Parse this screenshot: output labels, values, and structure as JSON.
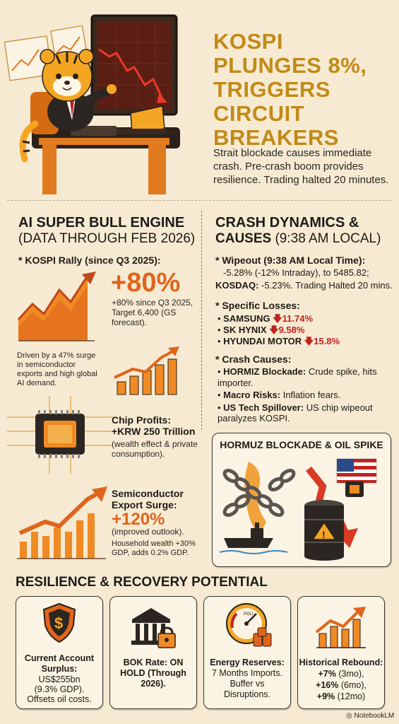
{
  "header": {
    "title_lines": [
      "KOSPI",
      "PLUNGES 8%,",
      "TRIGGERS",
      "CIRCUIT BREAKERS"
    ],
    "subtitle": "Strait blockade causes immediate crash. Pre-crash boom provides resilience. Trading halted 20 minutes."
  },
  "left": {
    "heading": "AI SUPER BULL ENGINE",
    "subheading": "(DATA THROUGH FEB 2026)",
    "rally_label": "* KOSPI Rally (since Q3 2025):",
    "rally_big": "+80%",
    "rally_detail": "+80% since Q3 2025, Target 6,400 (GS forecast).",
    "rally_driver": "Driven by a 47% surge in semiconductor exports and high global AI demand.",
    "chip_title": "Chip Profits:",
    "chip_value": "+KRW 250 Trillion",
    "chip_detail": "(wealth effect & private consumption).",
    "export_title": "Semiconductor Export Surge:",
    "export_big": "+120%",
    "export_outlook": "(improved outlook).",
    "export_detail": "Household wealth +30% GDP, adds 0.2% GDP."
  },
  "right": {
    "heading_line1": "CRASH DYNAMICS &",
    "heading_line2_bold": "CAUSES",
    "heading_line2_rest": "(9:38 AM LOCAL)",
    "wipeout_label": "* Wipeout (9:38 AM Local Time):",
    "wipeout_line1": "-5.28% (-12% Intraday), to 5485.82;",
    "wipeout_kosdaq_label": "KOSDAQ:",
    "wipeout_kosdaq_text": "-5.23%. Trading Halted 20 mins.",
    "losses_label": "* Specific Losses:",
    "losses": [
      {
        "name": "SAMSUNG",
        "value": "11.74%"
      },
      {
        "name": "SK HYNIX",
        "value": "9.58%"
      },
      {
        "name": "HYUNDAI MOTOR",
        "value": "15.8%"
      }
    ],
    "causes_label": "* Crash Causes:",
    "causes": [
      {
        "name": "HORMIZ Blockade:",
        "text": "Crude spike, hits importer."
      },
      {
        "name": "Macro Risks:",
        "text": "Inflation fears."
      },
      {
        "name": "US Tech Spillover:",
        "text": "US chip wipeout paralyzes KOSPI."
      }
    ],
    "box_title": "HORMUZ BLOCKADE & OIL SPIKE"
  },
  "resilience": {
    "heading": "RESILIENCE & RECOVERY POTENTIAL",
    "cards": [
      {
        "icon": "shield-dollar-icon",
        "title": "Current Account Surplus:",
        "lines": [
          "US$255bn",
          "(9.3% GDP).",
          "Offsets oil costs."
        ]
      },
      {
        "icon": "bank-lock-icon",
        "title": "BOK Rate: ON HOLD (Through 2026).",
        "lines": []
      },
      {
        "icon": "oil-gauge-icon",
        "gauge_label": "POLI",
        "title": "Energy Reserves:",
        "lines": [
          "7 Months Imports.",
          "Buffer vs",
          "Disruptions."
        ]
      },
      {
        "icon": "rising-chart-icon",
        "title": "Historical Rebound:",
        "rebounds": [
          {
            "value": "+7%",
            "period": "(3mo),"
          },
          {
            "value": "+16%",
            "period": "(6mo),"
          },
          {
            "value": "+9%",
            "period": "(12mo)"
          }
        ]
      }
    ]
  },
  "footer": {
    "brand": "NotebookLM"
  },
  "colors": {
    "accent_gold": "#c28a16",
    "accent_orange": "#e0651c",
    "loss_red": "#c0231c",
    "background": "#f6ead3"
  }
}
